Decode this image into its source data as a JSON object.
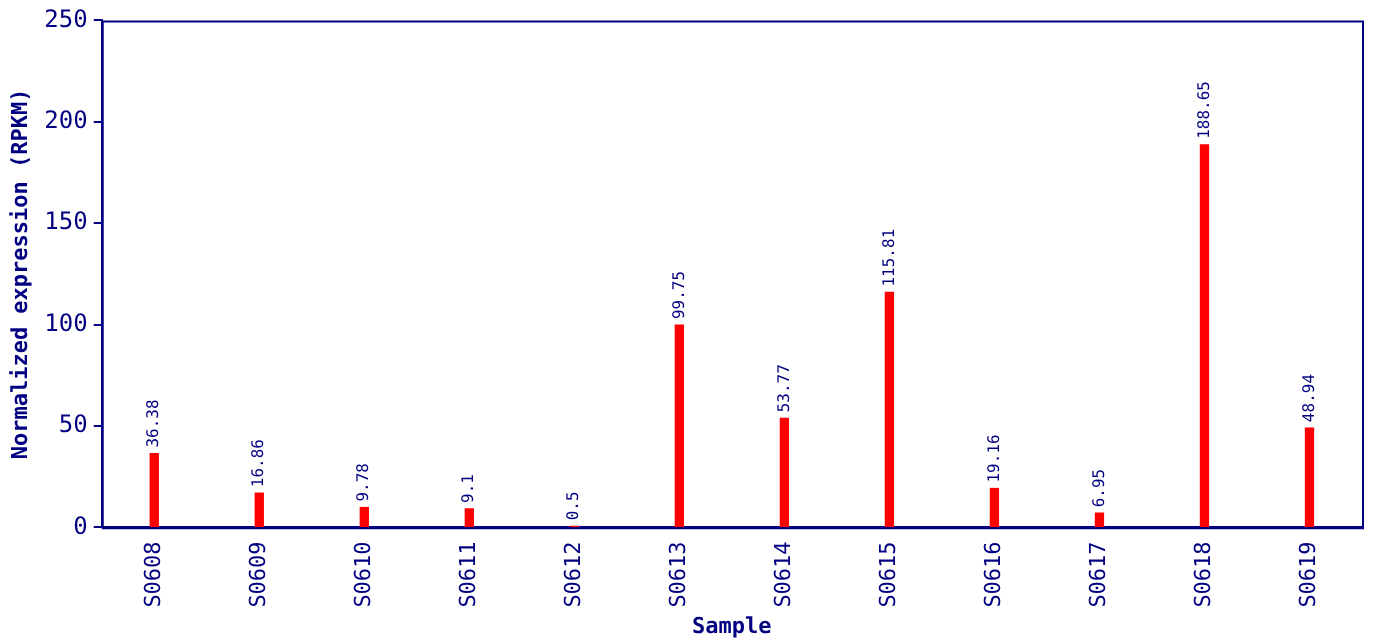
{
  "chart_data": {
    "type": "bar",
    "xlabel": "Sample",
    "ylabel": "Normalized expression (RPKM)",
    "categories": [
      "S0608",
      "S0609",
      "S0610",
      "S0611",
      "S0612",
      "S0613",
      "S0614",
      "S0615",
      "S0616",
      "S0617",
      "S0618",
      "S0619"
    ],
    "values": [
      36.38,
      16.86,
      9.78,
      9.1,
      0.5,
      99.75,
      53.77,
      115.81,
      19.16,
      6.95,
      188.65,
      48.94
    ],
    "color": "#ff0000",
    "ylim": [
      0,
      250
    ],
    "yticks": [
      0,
      50,
      100,
      150,
      200,
      250
    ],
    "grid": false,
    "legend": false,
    "data_labels": true
  }
}
